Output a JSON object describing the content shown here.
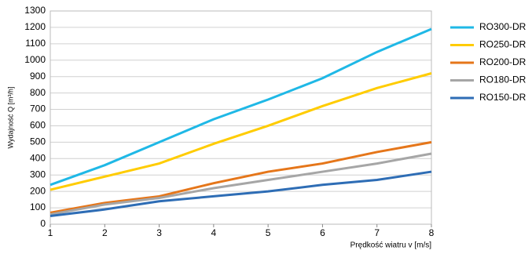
{
  "chart_data": {
    "type": "line",
    "y_label": "Wydajność Q [m³/h]",
    "x_label": "Prędkość wiatru v [m/s]",
    "x": [
      1,
      2,
      3,
      4,
      5,
      6,
      7,
      8
    ],
    "xlim": [
      1,
      8
    ],
    "xticks": [
      1,
      2,
      3,
      4,
      5,
      6,
      7,
      8
    ],
    "ylim": [
      0,
      1300
    ],
    "yticks": [
      0,
      100,
      200,
      300,
      400,
      500,
      600,
      700,
      800,
      900,
      1000,
      1100,
      1200,
      1300
    ],
    "grid": true,
    "legend": "right",
    "series": [
      {
        "name": "RO300-DR",
        "color": "#1fb8e6",
        "values": [
          240,
          360,
          500,
          640,
          760,
          890,
          1050,
          1190
        ]
      },
      {
        "name": "RO250-DR",
        "color": "#ffcc00",
        "values": [
          210,
          290,
          370,
          490,
          600,
          720,
          830,
          920
        ]
      },
      {
        "name": "RO200-DR",
        "color": "#e5761a",
        "values": [
          70,
          130,
          170,
          250,
          320,
          370,
          440,
          500
        ]
      },
      {
        "name": "RO180-DR",
        "color": "#a6a6a6",
        "values": [
          60,
          120,
          160,
          220,
          270,
          320,
          370,
          430
        ]
      },
      {
        "name": "RO150-DR",
        "color": "#2e6db5",
        "values": [
          50,
          90,
          140,
          170,
          200,
          240,
          270,
          320
        ]
      }
    ]
  }
}
